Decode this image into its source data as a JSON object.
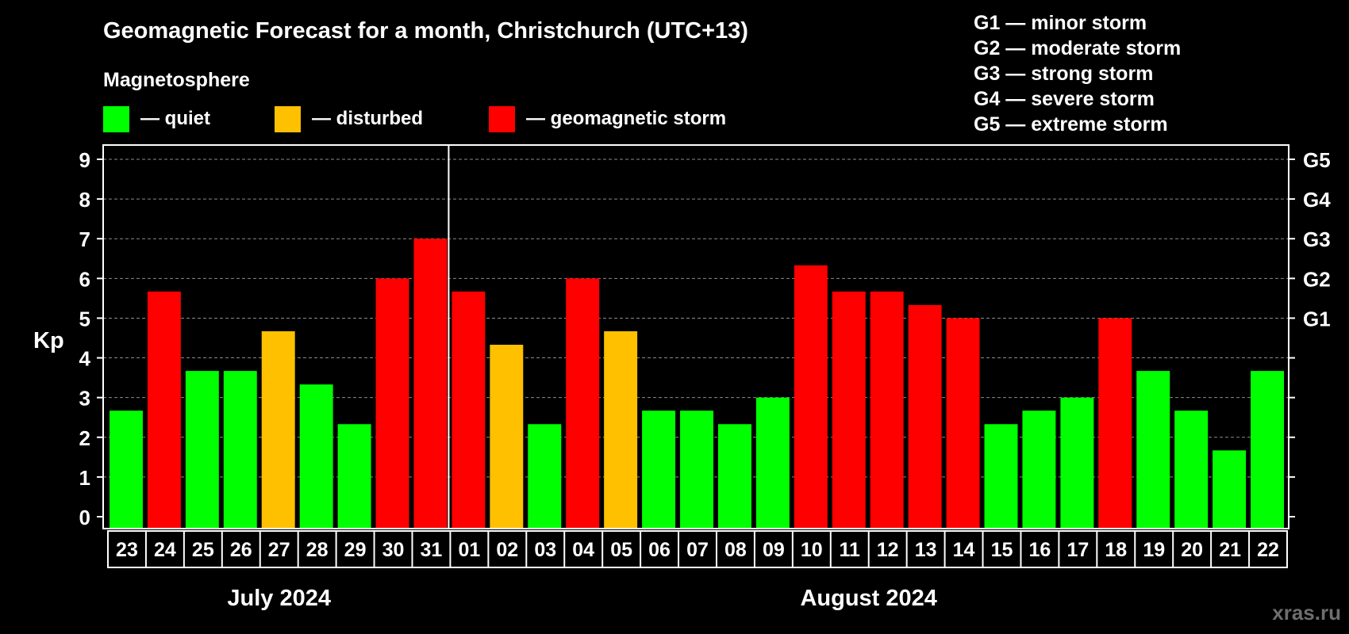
{
  "title": "Geomagnetic Forecast for a month, Christchurch (UTC+13)",
  "subtitle": "Magnetosphere",
  "legend": [
    {
      "label": "— quiet",
      "color": "#00ff00"
    },
    {
      "label": "— disturbed",
      "color": "#ffc000"
    },
    {
      "label": "— geomagnetic storm",
      "color": "#ff0000"
    }
  ],
  "storm_legend": [
    "G1 — minor storm",
    "G2 — moderate storm",
    "G3 — strong storm",
    "G4 — severe storm",
    "G5 — extreme storm"
  ],
  "watermark": "xras.ru",
  "colors": {
    "quiet": "#00ff00",
    "disturbed": "#ffc000",
    "storm": "#ff0000",
    "background": "#000000",
    "frame": "#ffffff",
    "grid": "#8c8c8c"
  },
  "chart_data": {
    "type": "bar",
    "ylabel": "Kp",
    "ylim": [
      0,
      9
    ],
    "yticks": [
      "0",
      "1",
      "2",
      "3",
      "4",
      "5",
      "6",
      "7",
      "8",
      "9"
    ],
    "right_ticks": [
      {
        "value": 5,
        "label": "G1"
      },
      {
        "value": 6,
        "label": "G2"
      },
      {
        "value": 7,
        "label": "G3"
      },
      {
        "value": 8,
        "label": "G4"
      },
      {
        "value": 9,
        "label": "G5"
      }
    ],
    "grid": true,
    "categories": [
      "23",
      "24",
      "25",
      "26",
      "27",
      "28",
      "29",
      "30",
      "31",
      "01",
      "02",
      "03",
      "04",
      "05",
      "06",
      "07",
      "08",
      "09",
      "10",
      "11",
      "12",
      "13",
      "14",
      "15",
      "16",
      "17",
      "18",
      "19",
      "20",
      "21",
      "22"
    ],
    "values": [
      2.67,
      5.67,
      3.67,
      3.67,
      4.67,
      3.33,
      2.33,
      6.0,
      7.0,
      5.67,
      4.33,
      2.33,
      6.0,
      4.67,
      2.67,
      2.67,
      2.33,
      3.0,
      6.33,
      5.67,
      5.67,
      5.33,
      5.0,
      2.33,
      2.67,
      3.0,
      5.0,
      3.67,
      2.67,
      1.67,
      3.67
    ],
    "levels": [
      "quiet",
      "storm",
      "quiet",
      "quiet",
      "disturbed",
      "quiet",
      "quiet",
      "storm",
      "storm",
      "storm",
      "disturbed",
      "quiet",
      "storm",
      "disturbed",
      "quiet",
      "quiet",
      "quiet",
      "quiet",
      "storm",
      "storm",
      "storm",
      "storm",
      "storm",
      "quiet",
      "quiet",
      "quiet",
      "storm",
      "quiet",
      "quiet",
      "quiet",
      "quiet"
    ],
    "months": [
      {
        "label": "July 2024",
        "count": 9
      },
      {
        "label": "August 2024",
        "count": 22
      }
    ]
  }
}
